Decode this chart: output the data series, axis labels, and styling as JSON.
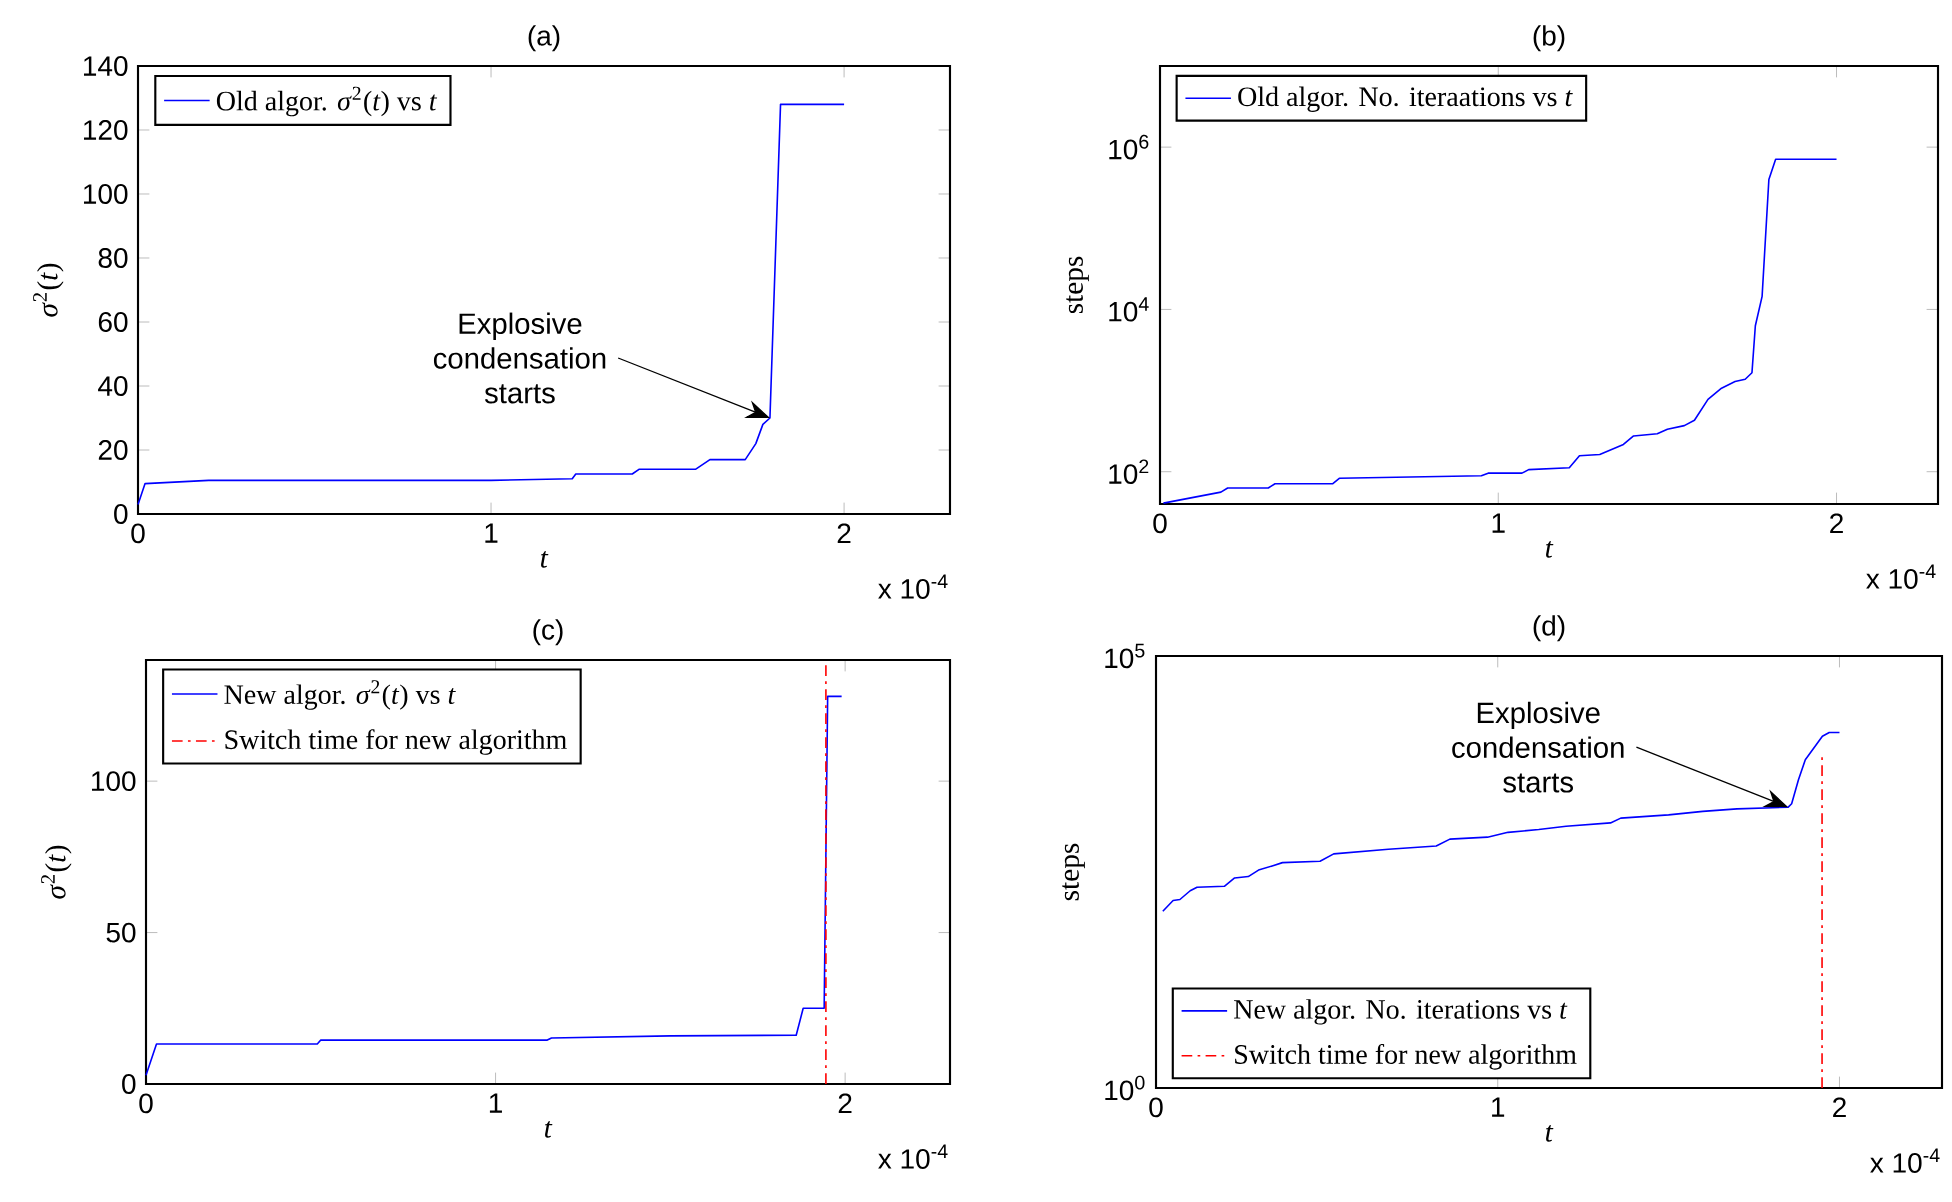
{
  "chart_data": [
    {
      "type": "line",
      "title": "(a)",
      "xlabel": "*t*",
      "ylabel": "*σ*$^{2}$(*t*)",
      "x": [
        0,
        0.02,
        0.2,
        1.0,
        1.23,
        1.24,
        1.4,
        1.42,
        1.58,
        1.62,
        1.72,
        1.75,
        1.77,
        1.79,
        1.82,
        2.0
      ],
      "series": [
        {
          "name": "Old algor. *σ*$^{2}$(*t*) vs *t*",
          "color": "#0000ff",
          "values": [
            3,
            9.5,
            10.5,
            10.5,
            11,
            12.5,
            12.5,
            14,
            14,
            17,
            17,
            22,
            28,
            30,
            128,
            128
          ]
        }
      ],
      "xlim": [
        0,
        2.3
      ],
      "ylim": [
        0,
        140
      ],
      "xticks": [
        0,
        1,
        2
      ],
      "yticks": [
        0,
        20,
        40,
        60,
        80,
        100,
        120,
        140
      ],
      "annotations": [
        "x 10$^{-4}$",
        {
          "text": "Explosive condensation starts",
          "x": 1.79,
          "y": 30
        }
      ],
      "legend": "top left",
      "line_style": "solid"
    },
    {
      "type": "line",
      "title": "(b)",
      "xlabel": "*t*",
      "ylabel": "steps",
      "log": "y",
      "x": [
        0.01,
        0.18,
        0.2,
        0.32,
        0.34,
        0.51,
        0.53,
        0.95,
        0.97,
        1.07,
        1.09,
        1.21,
        1.24,
        1.3,
        1.37,
        1.4,
        1.47,
        1.5,
        1.55,
        1.58,
        1.62,
        1.66,
        1.7,
        1.73,
        1.75,
        1.76,
        1.78,
        1.8,
        1.82,
        2.0
      ],
      "series": [
        {
          "name": "Old algor. No. iteraations vs *t*",
          "color": "#0000ff",
          "values": [
            41,
            56,
            63,
            63,
            71,
            71,
            83,
            89,
            96,
            96,
            106,
            112,
            157,
            163,
            217,
            276,
            293,
            333,
            370,
            430,
            780,
            1070,
            1290,
            1380,
            1660,
            6300,
            14500,
            400000,
            710000,
            710000
          ]
        }
      ],
      "xlim": [
        0,
        2.3
      ],
      "ylim": [
        40,
        10000000.0
      ],
      "xticks": [
        0,
        1,
        2
      ],
      "yticks": [
        {
          "value": 100,
          "label": "10$^{2}$"
        },
        {
          "value": 10000,
          "label": "10$^{4}$"
        },
        {
          "value": 1000000,
          "label": "10$^{6}$"
        }
      ],
      "annotations": [
        "x 10$^{-4}$"
      ],
      "legend": "top left",
      "line_style": "solid"
    },
    {
      "type": "line",
      "title": "(c)",
      "xlabel": "*t*",
      "ylabel": "*σ*$^{2}$(*t*)",
      "series": [
        {
          "name": "New algor. *σ*$^{2}$(*t*) vs *t*",
          "color": "#0000ff",
          "x": [
            0,
            0.03,
            0.49,
            0.5,
            1.148,
            1.16,
            1.5,
            1.86,
            1.88,
            1.94,
            1.95,
            1.99
          ],
          "values": [
            2.9,
            13.2,
            13.2,
            14.5,
            14.5,
            15.2,
            15.9,
            16.1,
            25,
            25,
            128,
            128
          ]
        },
        {
          "name": "Switch time for new algorithm",
          "color": "#ff0000",
          "line_style": "dashdot",
          "x": [
            1.945,
            1.945
          ],
          "values": [
            0,
            140
          ]
        }
      ],
      "xlim": [
        0,
        2.3
      ],
      "ylim": [
        0,
        140
      ],
      "xticks": [
        0,
        1,
        2
      ],
      "yticks": [
        0,
        50,
        100
      ],
      "annotations": [
        "x 10$^{-4}$"
      ],
      "legend": "top left",
      "line_style": "solid"
    },
    {
      "type": "line",
      "title": "(d)",
      "xlabel": "*t*",
      "ylabel": "steps",
      "log": "y",
      "series": [
        {
          "name": "New algor. No. iterations vs *t*",
          "color": "#0000ff",
          "x": [
            0.02,
            0.05,
            0.07,
            0.1,
            0.12,
            0.2,
            0.23,
            0.27,
            0.3,
            0.34,
            0.37,
            0.48,
            0.52,
            0.68,
            0.82,
            0.86,
            0.97,
            1.03,
            1.12,
            1.2,
            1.33,
            1.36,
            1.5,
            1.6,
            1.7,
            1.85,
            1.86,
            1.88,
            1.9,
            1.95,
            1.97,
            2.0
          ],
          "values": [
            111,
            148,
            152,
            192,
            211,
            216,
            270,
            280,
            333,
            372,
            406,
            421,
            513,
            580,
            632,
            760,
            800,
            910,
            980,
            1070,
            1170,
            1330,
            1450,
            1590,
            1700,
            1780,
            1950,
            3700,
            6300,
            11800,
            13000,
            13000
          ]
        },
        {
          "name": "Switch time for new algorithm",
          "color": "#ff0000",
          "line_style": "dashdot",
          "x": [
            1.949,
            1.949
          ],
          "values": [
            1,
            7600
          ]
        }
      ],
      "xlim": [
        0,
        2.3
      ],
      "ylim": [
        1,
        100000
      ],
      "xticks": [
        0,
        1,
        2
      ],
      "yticks": [
        {
          "value": 1,
          "label": "10$^{0}$"
        },
        {
          "value": 100000,
          "label": "10$^{5}$"
        }
      ],
      "annotations": [
        "x 10$^{-4}$",
        {
          "text": "Explosive condensation starts",
          "x": 1.85,
          "y": 1780
        }
      ],
      "legend": "bottom left",
      "line_style": "solid"
    }
  ]
}
